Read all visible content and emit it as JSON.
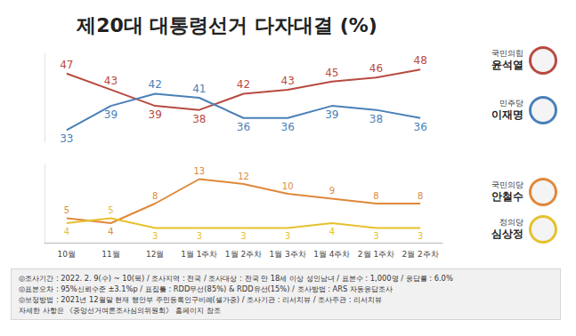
{
  "title": "제20대 대통령선거 다자대결 (%)",
  "chart_data": [
    {
      "type": "line",
      "categories": [
        "10월",
        "11월",
        "12월",
        "1월 1주차",
        "1월 2주차",
        "1월 3주차",
        "1월 4주차",
        "2월 1주차",
        "2월 2주차"
      ],
      "series": [
        {
          "name": "윤석열",
          "party": "국민의힘",
          "color": "#b84a40",
          "values": [
            47,
            43,
            39,
            38,
            42,
            43,
            45,
            46,
            48
          ]
        },
        {
          "name": "이재명",
          "party": "민주당",
          "color": "#4a80b8",
          "values": [
            33,
            39,
            42,
            41,
            36,
            36,
            39,
            38,
            36
          ]
        }
      ],
      "ylim": [
        30,
        52
      ],
      "grid": false,
      "data_labels": true,
      "tick_labels": false
    },
    {
      "type": "line",
      "categories": [
        "10월",
        "11월",
        "12월",
        "1월 1주차",
        "1월 2주차",
        "1월 3주차",
        "1월 4주차",
        "2월 1주차",
        "2월 2주차"
      ],
      "series": [
        {
          "name": "안철수",
          "party": "국민의당",
          "color": "#e0883a",
          "values": [
            5,
            4,
            8,
            13,
            12,
            10,
            9,
            8,
            8
          ]
        },
        {
          "name": "심상정",
          "party": "정의당",
          "color": "#e6c12e",
          "values": [
            4,
            5,
            3,
            3,
            3,
            3,
            4,
            3,
            3
          ]
        }
      ],
      "ylim": [
        0,
        16
      ],
      "grid": false,
      "data_labels": true,
      "tick_labels": "x"
    }
  ],
  "notes": [
    "◎조사기간 : 2022. 2. 9(수) ~ 10(목) / 조사지역 : 전국 / 조사대상 : 전국 만 18세 이상 성인남녀 / 표본수 : 1,000명 / 응답률 : 6.0%",
    "◎표본오차 : 95%신뢰수준 ±3.1%p / 표집틀 : RDD무선(85%) & RDD유선(15%) / 조사방법 : ARS 자동응답조사",
    "◎보정방법 : 2021년 12월말 현재 행안부 주민등록인구비례(셀가중) / 조사기관 : 리서치뷰 / 조사주관 : 리서치뷰",
    "자세한 사항은 《중앙선거여론조사심의위원회》 홈페이지 참조"
  ]
}
